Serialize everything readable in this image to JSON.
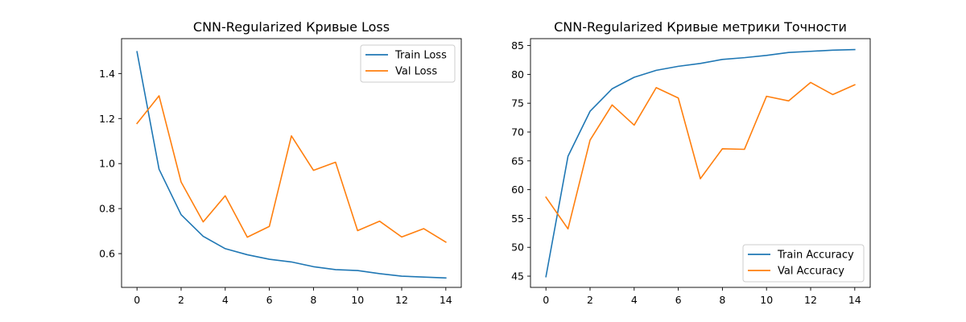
{
  "chart_data": [
    {
      "type": "line",
      "title": "CNN-Regularized Кривые Loss",
      "x": [
        0,
        1,
        2,
        3,
        4,
        5,
        6,
        7,
        8,
        9,
        10,
        11,
        12,
        13,
        14
      ],
      "xticks": [
        0,
        2,
        4,
        6,
        8,
        10,
        12,
        14
      ],
      "yticks": [
        0.6,
        0.8,
        1.0,
        1.2,
        1.4
      ],
      "ytick_labels": [
        "0.6",
        "0.8",
        "1.0",
        "1.2",
        "1.4"
      ],
      "xlim": [
        -0.7,
        14.7
      ],
      "ylim": [
        0.45,
        1.555
      ],
      "grid": false,
      "legend_position": "top-right",
      "series": [
        {
          "name": "Train Loss",
          "color": "#1f77b4",
          "values": [
            1.497,
            0.975,
            0.773,
            0.677,
            0.622,
            0.595,
            0.575,
            0.563,
            0.542,
            0.529,
            0.525,
            0.511,
            0.5,
            0.496,
            0.492
          ]
        },
        {
          "name": "Val Loss",
          "color": "#ff7f0e",
          "values": [
            1.178,
            1.301,
            0.918,
            0.741,
            0.857,
            0.673,
            0.721,
            1.123,
            0.97,
            1.006,
            0.702,
            0.744,
            0.674,
            0.711,
            0.651
          ]
        }
      ]
    },
    {
      "type": "line",
      "title": "CNN-Regularized Кривые метрики Точности",
      "x": [
        0,
        1,
        2,
        3,
        4,
        5,
        6,
        7,
        8,
        9,
        10,
        11,
        12,
        13,
        14
      ],
      "xticks": [
        0,
        2,
        4,
        6,
        8,
        10,
        12,
        14
      ],
      "yticks": [
        45,
        50,
        55,
        60,
        65,
        70,
        75,
        80,
        85
      ],
      "ytick_labels": [
        "45",
        "50",
        "55",
        "60",
        "65",
        "70",
        "75",
        "80",
        "85"
      ],
      "xlim": [
        -0.7,
        14.7
      ],
      "ylim": [
        43.05,
        86.2
      ],
      "grid": false,
      "legend_position": "bottom-right",
      "series": [
        {
          "name": "Train Accuracy",
          "color": "#1f77b4",
          "values": [
            44.9,
            65.8,
            73.6,
            77.5,
            79.5,
            80.7,
            81.4,
            81.9,
            82.6,
            82.9,
            83.3,
            83.8,
            84.0,
            84.2,
            84.3
          ]
        },
        {
          "name": "Val Accuracy",
          "color": "#ff7f0e",
          "values": [
            58.7,
            53.2,
            68.6,
            74.7,
            71.2,
            77.7,
            75.9,
            61.9,
            67.1,
            67.0,
            76.2,
            75.4,
            78.6,
            76.5,
            78.2
          ]
        }
      ]
    }
  ]
}
